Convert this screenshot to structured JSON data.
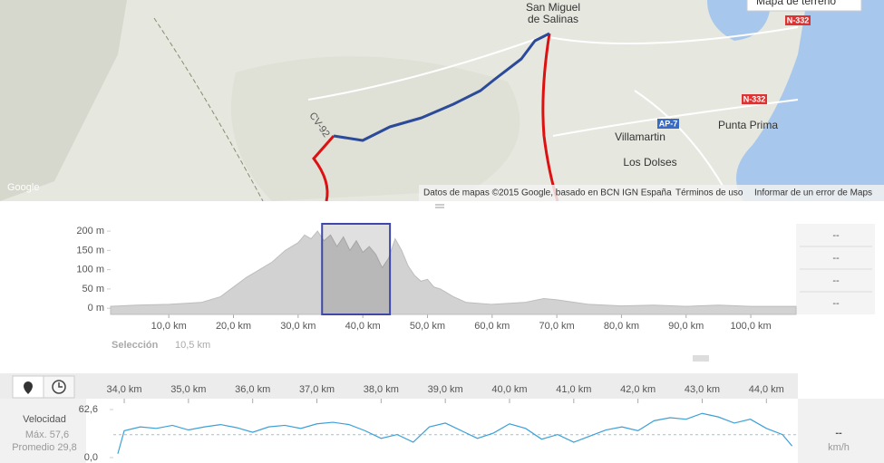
{
  "map": {
    "map_type": "Mapa de terreno",
    "labels": [
      "San Miguel",
      "de Salinas",
      "N-332",
      "N-332",
      "AP-7",
      "Punta Prima",
      "Villamartin",
      "Los Dolses",
      "CV-92"
    ],
    "logo": "Google",
    "attribution": "Datos de mapas ©2015 Google, basado en BCN IGN España",
    "terms": "Términos de uso",
    "report": "Informar de un error de Maps"
  },
  "chart_data": [
    {
      "type": "area",
      "color": "#d2d2d2",
      "line_color": "#bdbdbd",
      "x": [
        1,
        5,
        10,
        15,
        18,
        20,
        22,
        24,
        26,
        28,
        30,
        31,
        32,
        33,
        34,
        35,
        36,
        37,
        38,
        39,
        40,
        41,
        42,
        43,
        44,
        45,
        46,
        47,
        48,
        49,
        50,
        51,
        52,
        54,
        56,
        60,
        65,
        68,
        70,
        75,
        80,
        85,
        90,
        95,
        100,
        107
      ],
      "values": [
        5,
        8,
        10,
        15,
        30,
        55,
        80,
        100,
        120,
        150,
        170,
        190,
        180,
        200,
        175,
        190,
        160,
        185,
        150,
        175,
        145,
        160,
        140,
        105,
        130,
        180,
        150,
        110,
        85,
        70,
        75,
        55,
        50,
        30,
        15,
        10,
        15,
        25,
        22,
        10,
        6,
        8,
        5,
        8,
        5,
        5
      ],
      "xlim": [
        1,
        107
      ],
      "ylim": [
        -16,
        219
      ],
      "xticks": [
        {
          "value": 10,
          "label": "10,0 km"
        },
        {
          "value": 20,
          "label": "20,0 km"
        },
        {
          "value": 30,
          "label": "30,0 km"
        },
        {
          "value": 40,
          "label": "40,0 km"
        },
        {
          "value": 50,
          "label": "50,0 km"
        },
        {
          "value": 60,
          "label": "60,0 km"
        },
        {
          "value": 70,
          "label": "70,0 km"
        },
        {
          "value": 80,
          "label": "80,0 km"
        },
        {
          "value": 90,
          "label": "90,0 km"
        },
        {
          "value": 100,
          "label": "100,0 km"
        }
      ],
      "yticks": [
        {
          "value": 200,
          "label": "200 m"
        },
        {
          "value": 150,
          "label": "150 m"
        },
        {
          "value": 100,
          "label": "100 m"
        },
        {
          "value": 50,
          "label": "50 m"
        },
        {
          "value": 0,
          "label": "0 m"
        }
      ],
      "selection": {
        "start": 33.7,
        "end": 44.2,
        "color": "#3f48a8"
      },
      "selection_label": "Selección",
      "selection_value": "10,5 km",
      "readouts": [
        "--",
        "--",
        "--",
        "--"
      ]
    },
    {
      "type": "line",
      "color": "#3ca0d8",
      "title": "Velocidad",
      "max_label": "Máx. 57,6",
      "avg_label": "Promedio 29,8",
      "x": [
        33.9,
        34.0,
        34.25,
        34.5,
        34.75,
        35.0,
        35.25,
        35.5,
        35.75,
        36.0,
        36.25,
        36.5,
        36.75,
        37.0,
        37.25,
        37.5,
        37.75,
        38.0,
        38.25,
        38.5,
        38.75,
        39.0,
        39.25,
        39.5,
        39.75,
        40.0,
        40.25,
        40.5,
        40.75,
        41.0,
        41.25,
        41.5,
        41.75,
        42.0,
        42.25,
        42.5,
        42.75,
        43.0,
        43.25,
        43.5,
        43.75,
        44.0,
        44.25,
        44.4
      ],
      "values": [
        5,
        35,
        40,
        38,
        42,
        36,
        40,
        43,
        39,
        33,
        40,
        42,
        38,
        44,
        46,
        43,
        35,
        25,
        30,
        20,
        40,
        45,
        35,
        25,
        32,
        44,
        38,
        24,
        30,
        20,
        28,
        36,
        40,
        35,
        48,
        52,
        50,
        57.6,
        53,
        45,
        50,
        38,
        30,
        15
      ],
      "xlim": [
        33.83,
        44.49
      ],
      "ylim": [
        0,
        62.6
      ],
      "xticks": [
        {
          "value": 34,
          "label": "34,0 km"
        },
        {
          "value": 35,
          "label": "35,0 km"
        },
        {
          "value": 36,
          "label": "36,0 km"
        },
        {
          "value": 37,
          "label": "37,0 km"
        },
        {
          "value": 38,
          "label": "38,0 km"
        },
        {
          "value": 39,
          "label": "39,0 km"
        },
        {
          "value": 40,
          "label": "40,0 km"
        },
        {
          "value": 41,
          "label": "41,0 km"
        },
        {
          "value": 42,
          "label": "42,0 km"
        },
        {
          "value": 43,
          "label": "43,0 km"
        },
        {
          "value": 44,
          "label": "44,0 km"
        }
      ],
      "yticks": [
        {
          "value": 62.6,
          "label": "62,6"
        },
        {
          "value": 0,
          "label": "0,0"
        }
      ],
      "average": 29.8,
      "readout": "--",
      "unit": "km/h"
    }
  ]
}
